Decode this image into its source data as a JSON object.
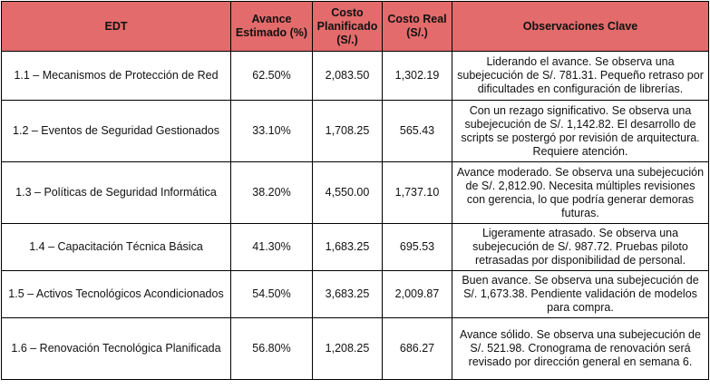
{
  "headers": {
    "edt": "EDT",
    "avance": "Avance Estimado (%)",
    "planificado": "Costo Planificado (S/.)",
    "real": "Costo Real (S/.)",
    "observaciones": "Observaciones Clave"
  },
  "rows": [
    {
      "edt": "1.1 – Mecanismos de Protección de Red",
      "avance": "62.50%",
      "planificado": "2,083.50",
      "real": "1,302.19",
      "obs": "Liderando el avance. Se observa una subejecución de S/. 781.31. Pequeño retraso por dificultades en configuración de librerías."
    },
    {
      "edt": "1.2 – Eventos de Seguridad Gestionados",
      "avance": "33.10%",
      "planificado": "1,708.25",
      "real": "565.43",
      "obs": "Con un rezago significativo. Se observa una subejecución de S/. 1,142.82. El desarrollo de scripts se postergó por revisión de arquitectura. Requiere atención."
    },
    {
      "edt": "1.3 – Políticas de Seguridad Informática",
      "avance": "38.20%",
      "planificado": "4,550.00",
      "real": "1,737.10",
      "obs": "Avance moderado. Se observa una subejecución de S/. 2,812.90. Necesita múltiples revisiones con gerencia, lo que podría generar demoras futuras."
    },
    {
      "edt": "1.4 – Capacitación Técnica Básica",
      "avance": "41.30%",
      "planificado": "1,683.25",
      "real": "695.53",
      "obs": "Ligeramente atrasado. Se observa una subejecución de S/. 987.72. Pruebas piloto retrasadas por disponibilidad de personal."
    },
    {
      "edt": "1.5 – Activos Tecnológicos Acondicionados",
      "avance": "54.50%",
      "planificado": "3,683.25",
      "real": "2,009.87",
      "obs": "Buen avance. Se observa una subejecución de S/. 1,673.38. Pendiente validación de modelos para compra."
    },
    {
      "edt": "1.6 – Renovación Tecnológica Planificada",
      "avance": "56.80%",
      "planificado": "1,208.25",
      "real": "686.27",
      "obs": "Avance sólido. Se observa una subejecución de S/. 521.98. Cronograma de renovación será revisado por dirección general en semana 6."
    }
  ]
}
